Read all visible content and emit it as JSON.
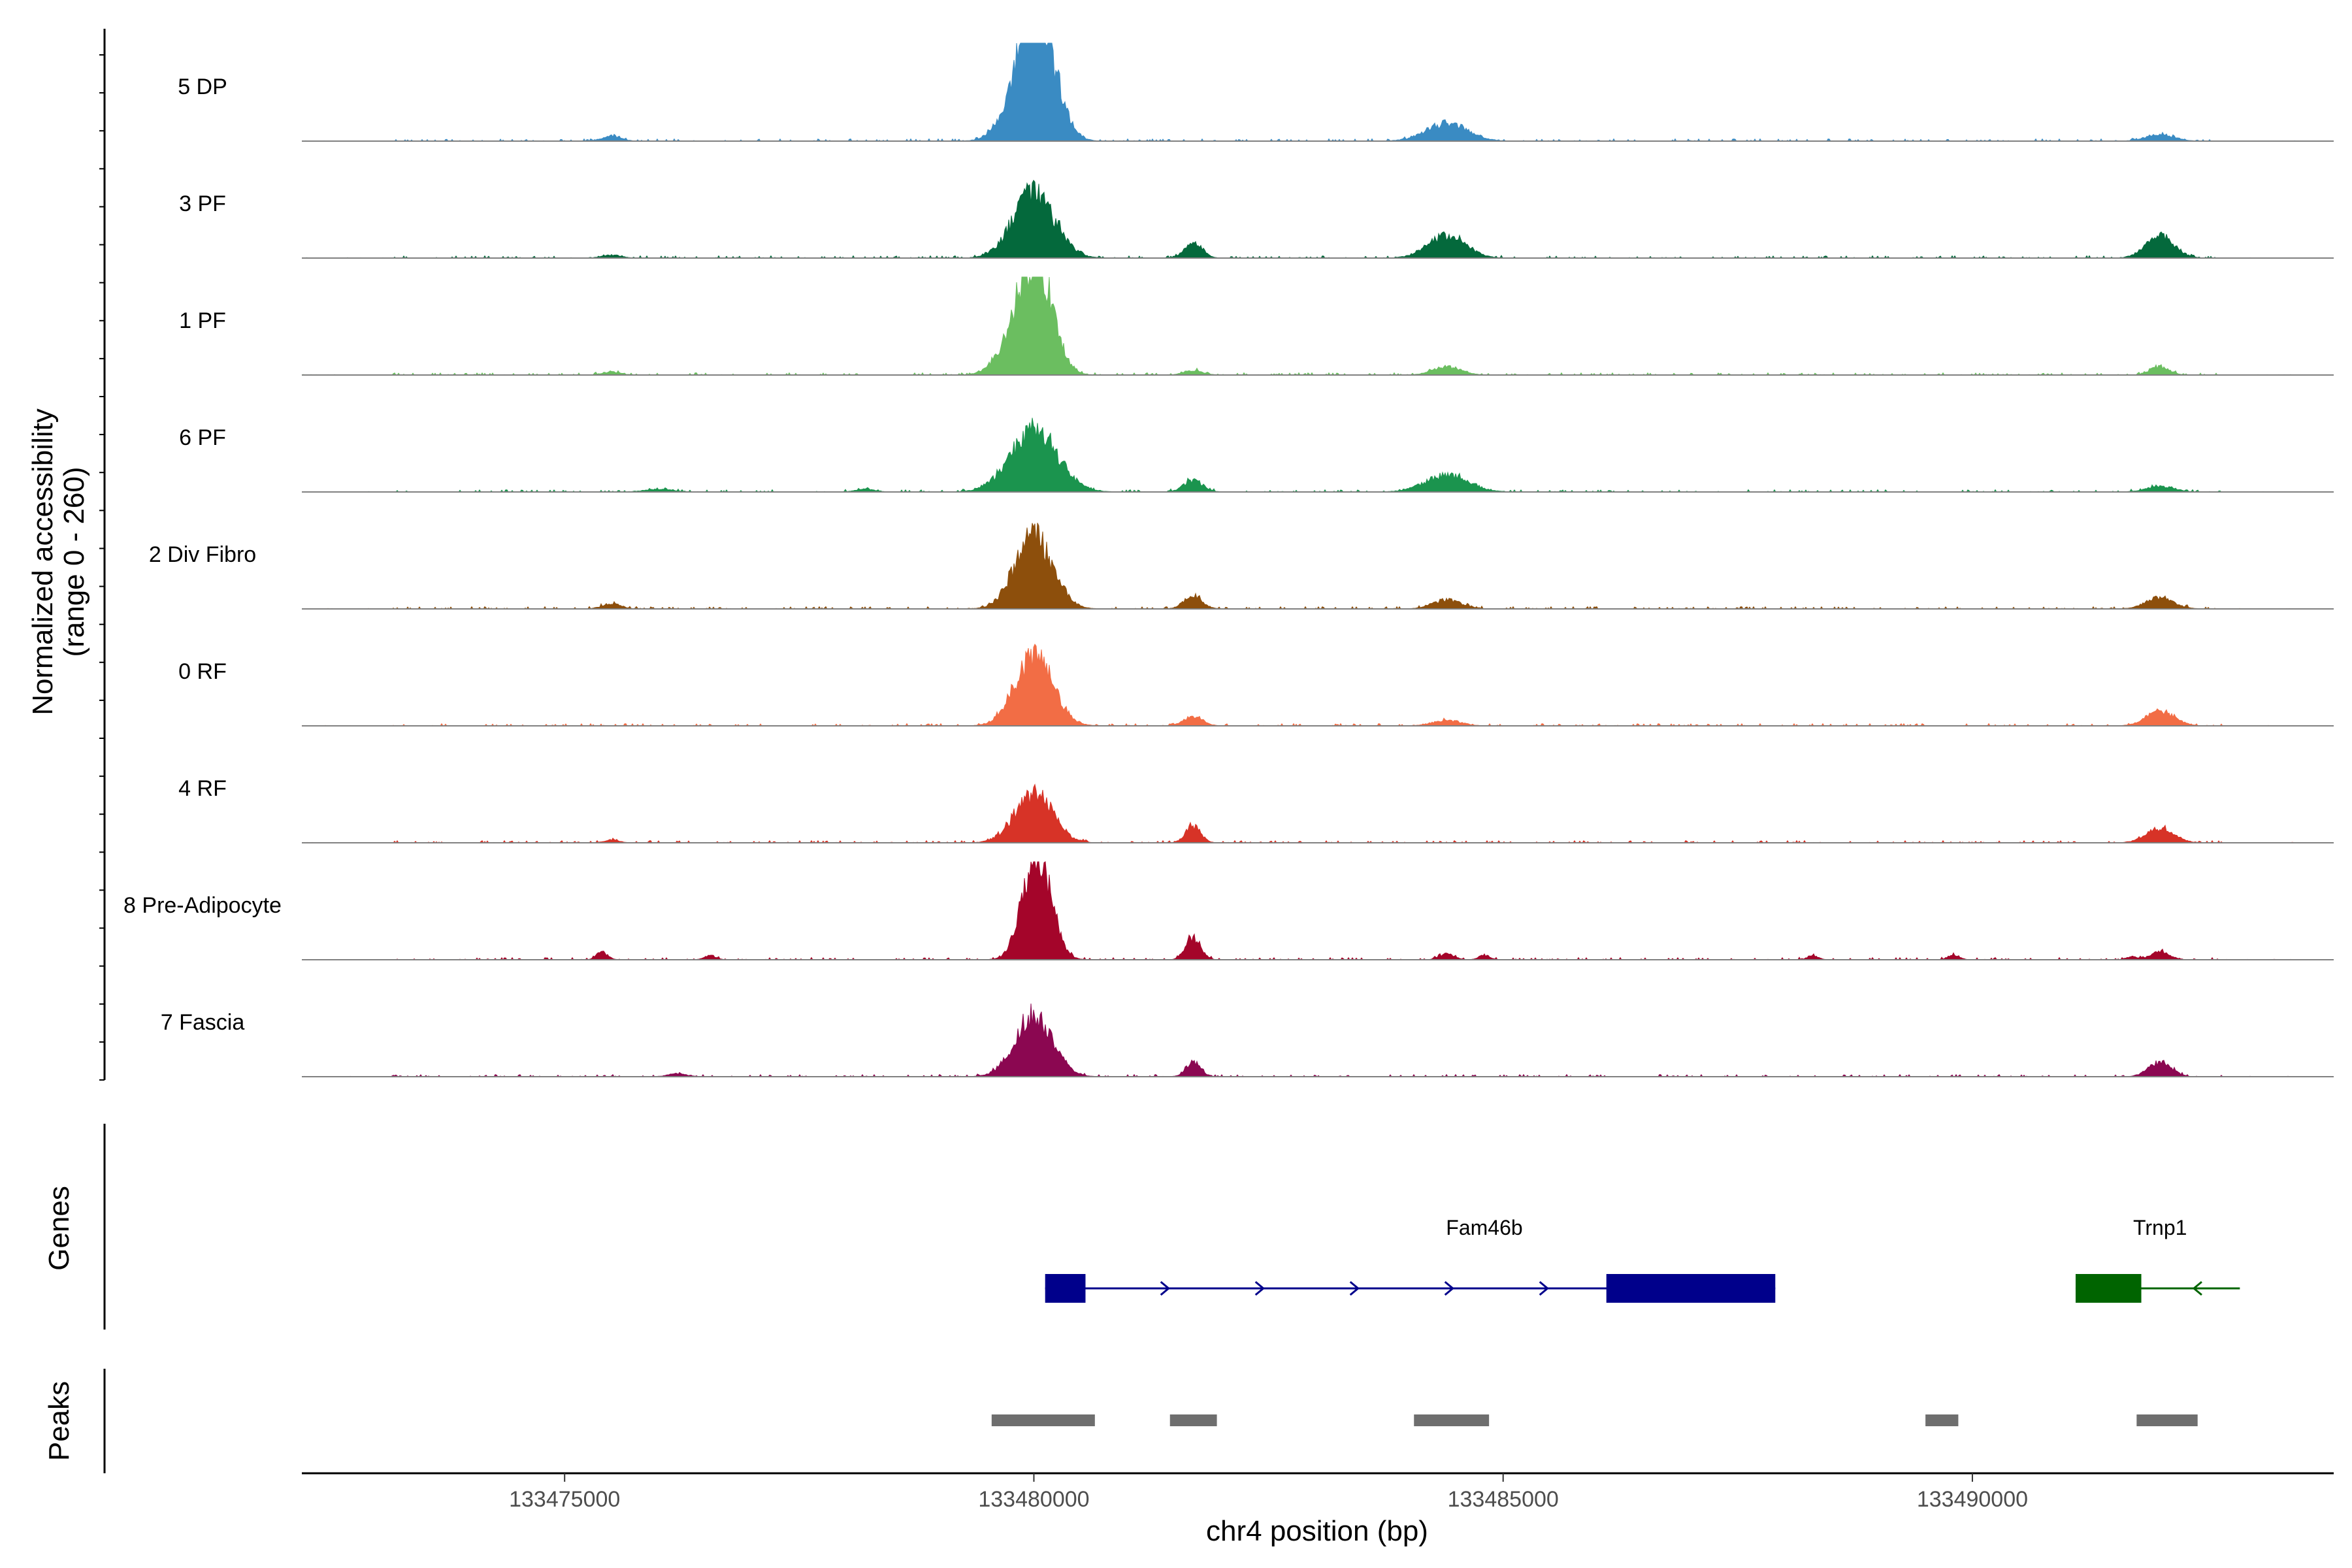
{
  "chart_data": {
    "type": "area",
    "coverage": {
      "ylabel_line1": "Normalized accessibility",
      "ylabel_line2": "(range 0 - 260)",
      "y_range": [
        0,
        260
      ],
      "baseline_color": "#808080",
      "tracks": [
        {
          "name": "5 DP",
          "color": "#3a8bc3",
          "peaks": [
            [
              133475500,
              14,
              100
            ],
            [
              133479957,
              200,
              210
            ],
            [
              133480050,
              180,
              180
            ],
            [
              133484400,
              48,
              220
            ],
            [
              133492000,
              18,
              150
            ]
          ]
        },
        {
          "name": "3 PF",
          "color": "#04693c",
          "peaks": [
            [
              133480000,
              175,
              220
            ],
            [
              133481700,
              42,
              90
            ],
            [
              133484400,
              60,
              200
            ],
            [
              133492000,
              60,
              150
            ],
            [
              133475500,
              8,
              100
            ]
          ]
        },
        {
          "name": "1 PF",
          "color": "#6bbe60",
          "peaks": [
            [
              133479900,
              165,
              200
            ],
            [
              133480060,
              190,
              160
            ],
            [
              133481700,
              12,
              100
            ],
            [
              133484400,
              22,
              150
            ],
            [
              133492000,
              22,
              100
            ],
            [
              133475500,
              8,
              100
            ]
          ]
        },
        {
          "name": "6 PF",
          "color": "#1b944e",
          "peaks": [
            [
              133480000,
              165,
              250
            ],
            [
              133481700,
              32,
              100
            ],
            [
              133484400,
              45,
              230
            ],
            [
              133492000,
              15,
              150
            ],
            [
              133476000,
              7,
              150
            ],
            [
              133478200,
              8,
              100
            ]
          ]
        },
        {
          "name": "2 Div Fibro",
          "color": "#8d4f0c",
          "peaks": [
            [
              133480000,
              200,
              200
            ],
            [
              133481700,
              32,
              100
            ],
            [
              133484400,
              25,
              150
            ],
            [
              133492000,
              30,
              150
            ],
            [
              133475500,
              14,
              100
            ]
          ]
        },
        {
          "name": "0 RF",
          "color": "#f26d45",
          "peaks": [
            [
              133480000,
              190,
              200
            ],
            [
              133481700,
              25,
              100
            ],
            [
              133484400,
              15,
              150
            ],
            [
              133492000,
              40,
              150
            ]
          ]
        },
        {
          "name": "4 RF",
          "color": "#d73327",
          "peaks": [
            [
              133480000,
              135,
              200
            ],
            [
              133481700,
              45,
              80
            ],
            [
              133492000,
              38,
              150
            ],
            [
              133475500,
              8,
              80
            ]
          ]
        },
        {
          "name": "8 Pre-Adipocyte",
          "color": "#a4052a",
          "peaks": [
            [
              133479970,
              200,
              130
            ],
            [
              133480120,
              130,
              130
            ],
            [
              133481700,
              60,
              80
            ],
            [
              133475400,
              20,
              60
            ],
            [
              133476550,
              12,
              60
            ],
            [
              133484400,
              16,
              80
            ],
            [
              133484800,
              12,
              60
            ],
            [
              133488300,
              10,
              60
            ],
            [
              133489800,
              14,
              60
            ],
            [
              133491700,
              8,
              60
            ],
            [
              133492000,
              22,
              100
            ]
          ]
        },
        {
          "name": "7 Fascia",
          "color": "#8b0751",
          "peaks": [
            [
              133480000,
              165,
              200
            ],
            [
              133481700,
              38,
              80
            ],
            [
              133492000,
              40,
              120
            ],
            [
              133476200,
              8,
              100
            ]
          ]
        }
      ]
    },
    "genes": {
      "panel_label": "Genes",
      "items": [
        {
          "name": "Fam46b",
          "color": "#00008b",
          "strand": "+",
          "start": 133480120,
          "end": 133487900,
          "exons": [
            [
              133480120,
              133480550
            ],
            [
              133486100,
              133487900
            ]
          ]
        },
        {
          "name": "Trnp1",
          "color": "#006400",
          "strand": "-",
          "start": 133491100,
          "end": 133492850,
          "exons": [
            [
              133491100,
              133491800
            ]
          ]
        }
      ]
    },
    "peaks": {
      "panel_label": "Peaks",
      "color": "#6e6e6e",
      "regions": [
        [
          133479550,
          133480650
        ],
        [
          133481450,
          133481950
        ],
        [
          133484050,
          133484850
        ],
        [
          133489500,
          133489850
        ],
        [
          133491750,
          133492400
        ]
      ]
    },
    "x_axis": {
      "label": "chr4 position (bp)",
      "range": [
        133472200,
        133493850
      ],
      "ticks": [
        133475000,
        133480000,
        133485000,
        133490000
      ],
      "tick_labels": [
        "133475000",
        "133480000",
        "133485000",
        "133490000"
      ]
    }
  }
}
